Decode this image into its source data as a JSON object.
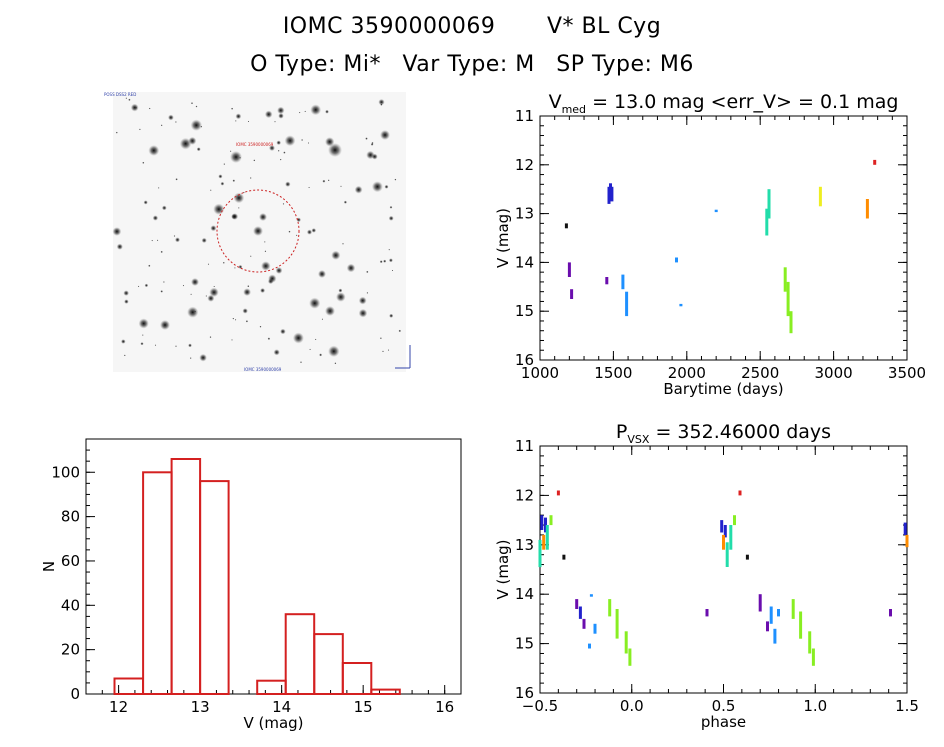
{
  "header": {
    "object_id": "IOMC 3590000069",
    "object_name": "V* BL Cyg",
    "o_type": "O Type: Mi*",
    "var_type": "Var Type: M",
    "sp_type": "SP Type: M6"
  },
  "colors": {
    "histogram_bar": "#d42020",
    "circle": "#cc2222"
  },
  "chart_data": [
    {
      "id": "sky-image",
      "type": "image",
      "tiny_label_top_left": "POSS DSS2 RED",
      "tiny_label_top_center": "IOMC 3590000069",
      "tiny_label_bottom": "IOMC 3590000069"
    },
    {
      "id": "light-curve",
      "type": "scatter",
      "title_main": "V",
      "title_sub": "med",
      "title_rest": " = 13.0 mag <err_V> = 0.1 mag",
      "xlabel": "Barytime (days)",
      "ylabel": "V (mag)",
      "xlim": [
        1000,
        3500
      ],
      "ylim": [
        16,
        11
      ],
      "xticks": [
        "1000",
        "1500",
        "2000",
        "2500",
        "3000",
        "3500"
      ],
      "yticks": [
        "11",
        "12",
        "13",
        "14",
        "15",
        "16"
      ],
      "series": [
        {
          "name": "g1",
          "color": "#111111",
          "segments": [
            [
              1180,
              13.2,
              13.3
            ]
          ]
        },
        {
          "name": "g2",
          "color": "#6a0dad",
          "segments": [
            [
              1200,
              14.0,
              14.3
            ],
            [
              1215,
              14.55,
              14.75
            ],
            [
              1455,
              14.3,
              14.45
            ]
          ]
        },
        {
          "name": "g3",
          "color": "#2222cc",
          "segments": [
            [
              1470,
              12.45,
              12.8
            ],
            [
              1480,
              12.38,
              12.7
            ],
            [
              1490,
              12.45,
              12.75
            ]
          ]
        },
        {
          "name": "g4",
          "color": "#1e90ff",
          "segments": [
            [
              1565,
              14.25,
              14.55
            ],
            [
              1590,
              14.6,
              15.1
            ],
            [
              1930,
              13.9,
              14.0
            ],
            [
              1960,
              14.85,
              14.9
            ],
            [
              2200,
              12.92,
              12.97
            ]
          ]
        },
        {
          "name": "g5",
          "color": "#22ddaa",
          "segments": [
            [
              2545,
              12.9,
              13.45
            ],
            [
              2560,
              12.5,
              13.1
            ]
          ]
        },
        {
          "name": "g6",
          "color": "#88ee22",
          "segments": [
            [
              2670,
              14.1,
              14.6
            ],
            [
              2690,
              14.4,
              15.1
            ],
            [
              2710,
              15.0,
              15.45
            ]
          ]
        },
        {
          "name": "g7",
          "color": "#eeee22",
          "segments": [
            [
              2910,
              12.45,
              12.85
            ]
          ]
        },
        {
          "name": "g8",
          "color": "#ff8c00",
          "segments": [
            [
              3230,
              12.7,
              13.1
            ]
          ]
        },
        {
          "name": "g9",
          "color": "#dd2222",
          "segments": [
            [
              3280,
              11.9,
              12.0
            ]
          ]
        }
      ]
    },
    {
      "id": "histogram",
      "type": "bar",
      "xlabel": "V (mag)",
      "ylabel": "N",
      "xlim": [
        11.6,
        16.2
      ],
      "ylim": [
        0,
        115
      ],
      "xticks": [
        "12",
        "13",
        "14",
        "15",
        "16"
      ],
      "yticks": [
        "0",
        "20",
        "40",
        "60",
        "80",
        "100"
      ],
      "bin_width": 0.35,
      "bin_starts": [
        11.95,
        12.3,
        12.65,
        13.0,
        13.35,
        13.7,
        14.05,
        14.4,
        14.75,
        15.1,
        15.45
      ],
      "values": [
        7,
        100,
        106,
        96,
        0,
        6,
        36,
        27,
        14,
        2,
        0
      ]
    },
    {
      "id": "phased-curve",
      "type": "scatter",
      "title_main": "P",
      "title_sub": "VSX",
      "title_rest": " = 352.46000 days",
      "xlabel": "phase",
      "ylabel": "V (mag)",
      "xlim": [
        -0.5,
        1.5
      ],
      "ylim": [
        16,
        11
      ],
      "xticks": [
        "−0.5",
        "0.0",
        "0.5",
        "1.0",
        "1.5"
      ],
      "yticks": [
        "11",
        "12",
        "13",
        "14",
        "15",
        "16"
      ],
      "series": [
        {
          "name": "p1",
          "color": "#2222cc",
          "segments": [
            [
              -0.49,
              12.4,
              12.7
            ],
            [
              -0.47,
              12.45,
              12.75
            ]
          ]
        },
        {
          "name": "p2",
          "color": "#ff8c00",
          "segments": [
            [
              -0.48,
              12.8,
              13.1
            ]
          ]
        },
        {
          "name": "p3",
          "color": "#22ddaa",
          "segments": [
            [
              -0.5,
              12.9,
              13.45
            ],
            [
              -0.46,
              12.6,
              13.1
            ]
          ]
        },
        {
          "name": "p4",
          "color": "#88ee22",
          "segments": [
            [
              -0.44,
              12.4,
              12.6
            ]
          ]
        },
        {
          "name": "p5",
          "color": "#dd2222",
          "segments": [
            [
              -0.4,
              11.9,
              12.0
            ]
          ]
        },
        {
          "name": "p6",
          "color": "#111111",
          "segments": [
            [
              -0.37,
              13.2,
              13.3
            ]
          ]
        },
        {
          "name": "p7",
          "color": "#6a0dad",
          "segments": [
            [
              -0.3,
              14.1,
              14.3
            ],
            [
              -0.26,
              14.5,
              14.7
            ]
          ]
        },
        {
          "name": "p8",
          "color": "#2222cc",
          "segments": [
            [
              -0.28,
              14.25,
              14.5
            ]
          ]
        },
        {
          "name": "p9",
          "color": "#1e90ff",
          "segments": [
            [
              -0.22,
              14.0,
              14.05
            ],
            [
              -0.2,
              14.6,
              14.8
            ],
            [
              -0.23,
              15.0,
              15.1
            ]
          ]
        },
        {
          "name": "p10",
          "color": "#88ee22",
          "segments": [
            [
              -0.12,
              14.1,
              14.45
            ],
            [
              -0.08,
              14.3,
              14.9
            ],
            [
              -0.03,
              14.75,
              15.2
            ],
            [
              -0.01,
              15.1,
              15.45
            ]
          ]
        },
        {
          "name": "p11",
          "color": "#6a0dad",
          "segments": [
            [
              0.41,
              14.3,
              14.45
            ]
          ]
        },
        {
          "name": "p12",
          "color": "#2222cc",
          "segments": [
            [
              0.49,
              12.5,
              12.75
            ],
            [
              0.51,
              12.6,
              12.85
            ]
          ]
        },
        {
          "name": "p13",
          "color": "#ff8c00",
          "segments": [
            [
              0.5,
              12.8,
              13.1
            ]
          ]
        },
        {
          "name": "p14",
          "color": "#22ddaa",
          "segments": [
            [
              0.52,
              12.95,
              13.45
            ],
            [
              0.54,
              12.6,
              13.1
            ]
          ]
        },
        {
          "name": "p15",
          "color": "#88ee22",
          "segments": [
            [
              0.56,
              12.4,
              12.6
            ]
          ]
        },
        {
          "name": "p16",
          "color": "#dd2222",
          "segments": [
            [
              0.59,
              11.9,
              12.0
            ]
          ]
        },
        {
          "name": "p17",
          "color": "#111111",
          "segments": [
            [
              0.63,
              13.2,
              13.3
            ]
          ]
        },
        {
          "name": "p18",
          "color": "#6a0dad",
          "segments": [
            [
              0.7,
              14.0,
              14.35
            ],
            [
              0.74,
              14.55,
              14.75
            ]
          ]
        },
        {
          "name": "p19",
          "color": "#1e90ff",
          "segments": [
            [
              0.76,
              14.25,
              14.6
            ],
            [
              0.78,
              14.7,
              15.0
            ],
            [
              0.8,
              14.3,
              14.45
            ]
          ]
        },
        {
          "name": "p20",
          "color": "#88ee22",
          "segments": [
            [
              0.88,
              14.1,
              14.5
            ],
            [
              0.92,
              14.35,
              14.9
            ],
            [
              0.97,
              14.75,
              15.2
            ],
            [
              0.99,
              15.1,
              15.45
            ]
          ]
        },
        {
          "name": "p21",
          "color": "#6a0dad",
          "segments": [
            [
              1.41,
              14.3,
              14.45
            ]
          ]
        },
        {
          "name": "p22",
          "color": "#2222cc",
          "segments": [
            [
              1.49,
              12.55,
              12.8
            ]
          ]
        },
        {
          "name": "p23",
          "color": "#ff8c00",
          "segments": [
            [
              1.5,
              12.8,
              13.05
            ]
          ]
        }
      ]
    }
  ]
}
